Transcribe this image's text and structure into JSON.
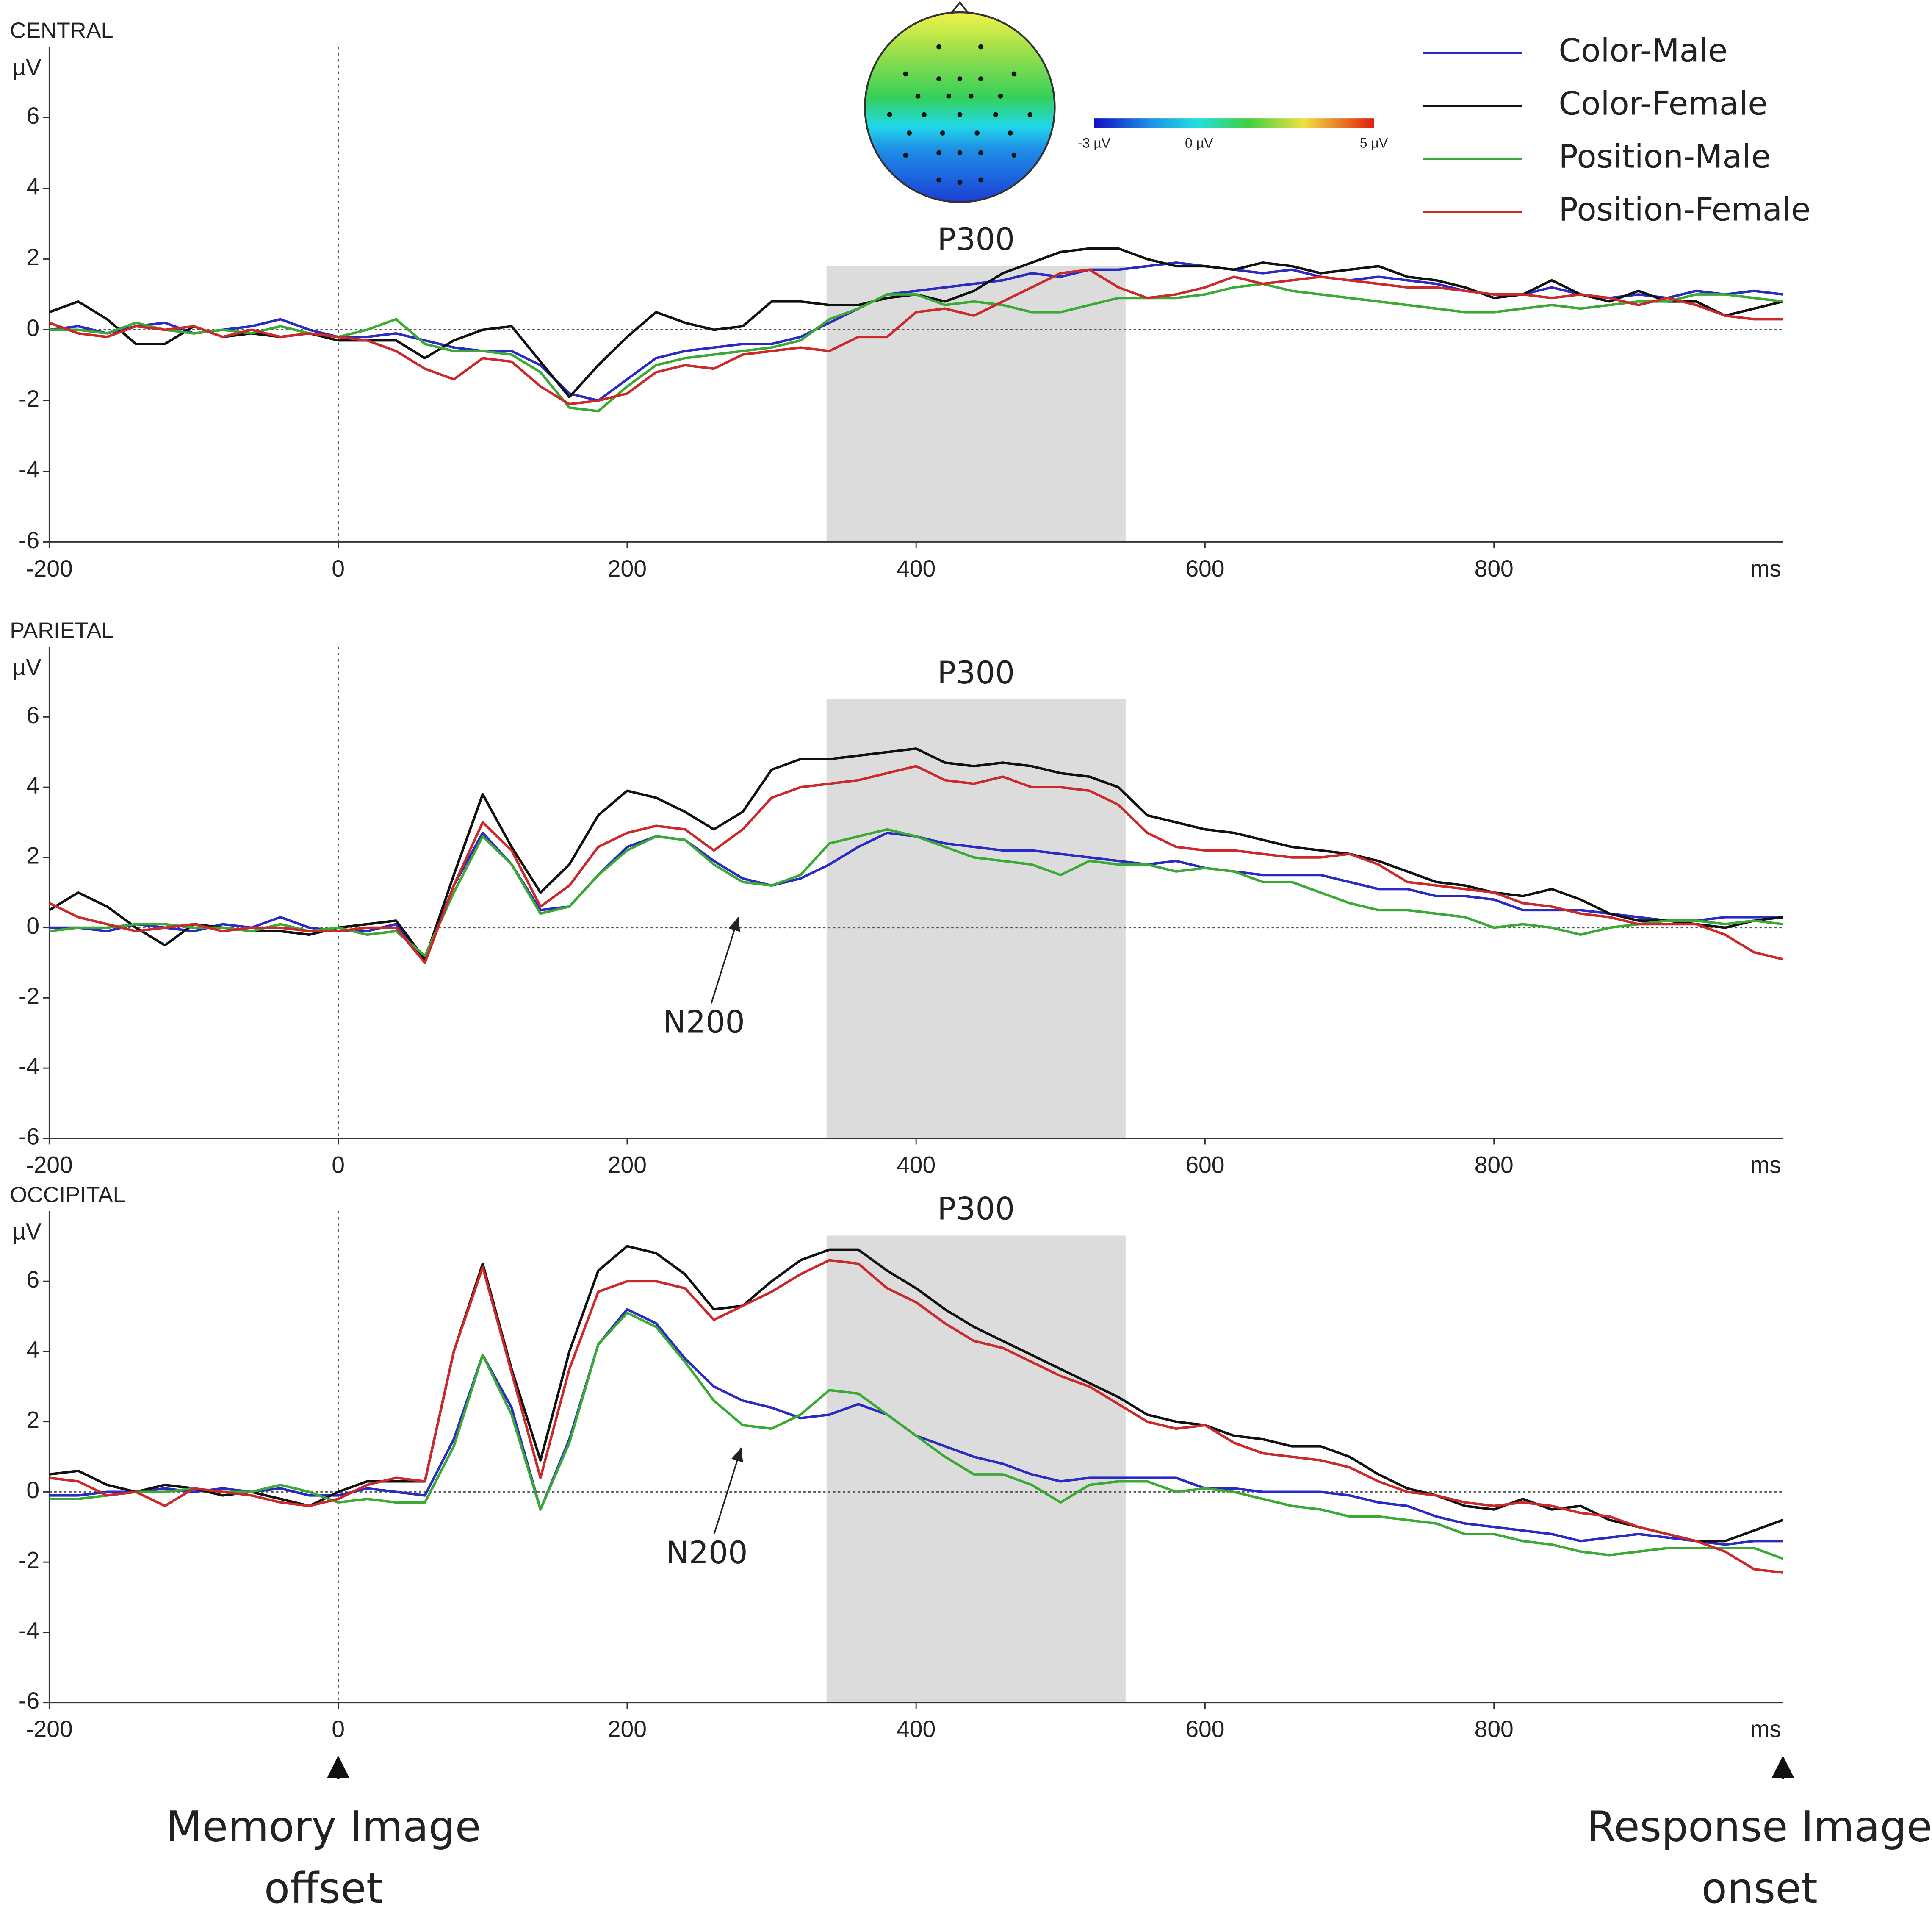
{
  "chart_data": [
    {
      "type": "line",
      "title": "CENTRAL",
      "ylabel": "µV",
      "x_unit": "ms",
      "xlim": [
        -200,
        1000
      ],
      "ylim": [
        -6,
        8
      ],
      "xticks": [
        -200,
        0,
        200,
        400,
        600,
        800
      ],
      "yticks": [
        -6,
        -4,
        -2,
        0,
        2,
        4,
        6
      ],
      "hline": 0,
      "vline": 0,
      "legend": true,
      "region": {
        "label": "P300",
        "x": [
          338,
          545
        ],
        "y": [
          -6,
          1.8
        ]
      },
      "colorbar": {
        "lim": [
          -3,
          5
        ],
        "ticks": [
          {
            "value": -3,
            "label": "-3 µV"
          },
          {
            "value": 0,
            "label": "0 µV"
          },
          {
            "value": 5,
            "label": "5 µV"
          }
        ]
      },
      "x": [
        -200,
        -180,
        -160,
        -140,
        -120,
        -100,
        -80,
        -60,
        -40,
        -20,
        0,
        20,
        40,
        60,
        80,
        100,
        120,
        140,
        160,
        180,
        200,
        220,
        240,
        260,
        280,
        300,
        320,
        340,
        360,
        380,
        400,
        420,
        440,
        460,
        480,
        500,
        520,
        540,
        560,
        580,
        600,
        620,
        640,
        660,
        680,
        700,
        720,
        740,
        760,
        780,
        800,
        820,
        840,
        860,
        880,
        900,
        920,
        940,
        960,
        980,
        1000
      ],
      "series": [
        {
          "name": "Color-Male",
          "color": "#2b2bc4",
          "label_color": "#3b6ea8",
          "values": [
            0,
            0.1,
            -0.1,
            0.1,
            0.2,
            -0.1,
            0,
            0.1,
            0.3,
            0,
            -0.2,
            -0.2,
            -0.1,
            -0.3,
            -0.5,
            -0.6,
            -0.6,
            -1.0,
            -1.8,
            -2.0,
            -1.4,
            -0.8,
            -0.6,
            -0.5,
            -0.4,
            -0.4,
            -0.2,
            0.2,
            0.6,
            1.0,
            1.1,
            1.2,
            1.3,
            1.4,
            1.6,
            1.5,
            1.7,
            1.7,
            1.8,
            1.9,
            1.8,
            1.7,
            1.6,
            1.7,
            1.5,
            1.4,
            1.5,
            1.4,
            1.3,
            1.1,
            1.0,
            1.0,
            1.2,
            1.0,
            0.9,
            1.0,
            0.9,
            1.1,
            1.0,
            1.1,
            1.0
          ]
        },
        {
          "name": "Color-Female",
          "color": "#111111",
          "label_color": "#111111",
          "values": [
            0.5,
            0.8,
            0.3,
            -0.4,
            -0.4,
            0.1,
            -0.2,
            -0.1,
            -0.2,
            -0.1,
            -0.3,
            -0.3,
            -0.3,
            -0.8,
            -0.3,
            0,
            0.1,
            -0.9,
            -1.9,
            -1.0,
            -0.2,
            0.5,
            0.2,
            0,
            0.1,
            0.8,
            0.8,
            0.7,
            0.7,
            0.9,
            1.0,
            0.8,
            1.1,
            1.6,
            1.9,
            2.2,
            2.3,
            2.3,
            2.0,
            1.8,
            1.8,
            1.7,
            1.9,
            1.8,
            1.6,
            1.7,
            1.8,
            1.5,
            1.4,
            1.2,
            0.9,
            1.0,
            1.4,
            1.0,
            0.8,
            1.1,
            0.8,
            0.8,
            0.4,
            0.6,
            0.8
          ]
        },
        {
          "name": "Position-Male",
          "color": "#3aaa35",
          "label_color": "#4c8a2e",
          "values": [
            0,
            0,
            -0.1,
            0.2,
            0,
            -0.1,
            0,
            -0.1,
            0.1,
            -0.1,
            -0.2,
            0,
            0.3,
            -0.4,
            -0.6,
            -0.6,
            -0.7,
            -1.2,
            -2.2,
            -2.3,
            -1.6,
            -1.0,
            -0.8,
            -0.7,
            -0.6,
            -0.5,
            -0.3,
            0.3,
            0.6,
            1.0,
            1.0,
            0.7,
            0.8,
            0.7,
            0.5,
            0.5,
            0.7,
            0.9,
            0.9,
            0.9,
            1.0,
            1.2,
            1.3,
            1.1,
            1.0,
            0.9,
            0.8,
            0.7,
            0.6,
            0.5,
            0.5,
            0.6,
            0.7,
            0.6,
            0.7,
            0.8,
            0.8,
            1.0,
            1.0,
            0.9,
            0.8
          ]
        },
        {
          "name": "Position-Female",
          "color": "#cc2a2a",
          "label_color": "#c0282e",
          "values": [
            0.2,
            -0.1,
            -0.2,
            0.1,
            0,
            0.1,
            -0.2,
            0,
            -0.2,
            -0.1,
            -0.2,
            -0.3,
            -0.6,
            -1.1,
            -1.4,
            -0.8,
            -0.9,
            -1.6,
            -2.1,
            -2.0,
            -1.8,
            -1.2,
            -1.0,
            -1.1,
            -0.7,
            -0.6,
            -0.5,
            -0.6,
            -0.2,
            -0.2,
            0.5,
            0.6,
            0.4,
            0.8,
            1.2,
            1.6,
            1.7,
            1.2,
            0.9,
            1.0,
            1.2,
            1.5,
            1.3,
            1.4,
            1.5,
            1.4,
            1.3,
            1.2,
            1.2,
            1.1,
            1.0,
            1.0,
            0.9,
            1.0,
            0.9,
            0.7,
            0.9,
            0.7,
            0.4,
            0.3,
            0.3
          ]
        }
      ]
    },
    {
      "type": "line",
      "title": "PARIETAL",
      "ylabel": "µV",
      "x_unit": "ms",
      "xlim": [
        -200,
        1000
      ],
      "ylim": [
        -6,
        8
      ],
      "xticks": [
        -200,
        0,
        200,
        400,
        600,
        800
      ],
      "yticks": [
        -6,
        -4,
        -2,
        0,
        2,
        4,
        6
      ],
      "hline": 0,
      "vline": 0,
      "legend": false,
      "region": {
        "label": "P300",
        "x": [
          338,
          545
        ],
        "y": [
          -6,
          6.5
        ]
      },
      "annotations": [
        {
          "text": "N200",
          "x": 277,
          "y": 0.3
        }
      ],
      "x": [
        -200,
        -180,
        -160,
        -140,
        -120,
        -100,
        -80,
        -60,
        -40,
        -20,
        0,
        20,
        40,
        60,
        80,
        100,
        120,
        140,
        160,
        180,
        200,
        220,
        240,
        260,
        280,
        300,
        320,
        340,
        360,
        380,
        400,
        420,
        440,
        460,
        480,
        500,
        520,
        540,
        560,
        580,
        600,
        620,
        640,
        660,
        680,
        700,
        720,
        740,
        760,
        780,
        800,
        820,
        840,
        860,
        880,
        900,
        920,
        940,
        960,
        980,
        1000
      ],
      "series": [
        {
          "name": "Color-Male",
          "color": "#2b2bc4",
          "values": [
            0,
            0,
            -0.1,
            0.1,
            0,
            -0.1,
            0.1,
            0,
            0.3,
            0,
            -0.1,
            -0.1,
            0.1,
            -0.9,
            1.2,
            2.7,
            1.8,
            0.5,
            0.6,
            1.5,
            2.3,
            2.6,
            2.5,
            1.9,
            1.4,
            1.2,
            1.4,
            1.8,
            2.3,
            2.7,
            2.6,
            2.4,
            2.3,
            2.2,
            2.2,
            2.1,
            2.0,
            1.9,
            1.8,
            1.9,
            1.7,
            1.6,
            1.5,
            1.5,
            1.5,
            1.3,
            1.1,
            1.1,
            0.9,
            0.9,
            0.8,
            0.5,
            0.5,
            0.5,
            0.4,
            0.3,
            0.2,
            0.2,
            0.3,
            0.3,
            0.3
          ]
        },
        {
          "name": "Color-Female",
          "color": "#111111",
          "values": [
            0.5,
            1.0,
            0.6,
            0,
            -0.5,
            0.1,
            0,
            -0.1,
            -0.1,
            -0.2,
            0,
            0.1,
            0.2,
            -0.9,
            1.5,
            3.8,
            2.3,
            1.0,
            1.8,
            3.2,
            3.9,
            3.7,
            3.3,
            2.8,
            3.3,
            4.5,
            4.8,
            4.8,
            4.9,
            5.0,
            5.1,
            4.7,
            4.6,
            4.7,
            4.6,
            4.4,
            4.3,
            4.0,
            3.2,
            3.0,
            2.8,
            2.7,
            2.5,
            2.3,
            2.2,
            2.1,
            1.9,
            1.6,
            1.3,
            1.2,
            1.0,
            0.9,
            1.1,
            0.8,
            0.4,
            0.2,
            0.2,
            0.1,
            0,
            0.2,
            0.3
          ]
        },
        {
          "name": "Position-Male",
          "color": "#3aaa35",
          "values": [
            -0.1,
            0,
            0,
            0.1,
            0.1,
            0,
            0,
            -0.1,
            0.1,
            -0.1,
            0,
            -0.2,
            -0.1,
            -0.8,
            1.0,
            2.6,
            1.8,
            0.4,
            0.6,
            1.5,
            2.2,
            2.6,
            2.5,
            1.8,
            1.3,
            1.2,
            1.5,
            2.4,
            2.6,
            2.8,
            2.6,
            2.3,
            2.0,
            1.9,
            1.8,
            1.5,
            1.9,
            1.8,
            1.8,
            1.6,
            1.7,
            1.6,
            1.3,
            1.3,
            1.0,
            0.7,
            0.5,
            0.5,
            0.4,
            0.3,
            0,
            0.1,
            0,
            -0.2,
            0,
            0.1,
            0.2,
            0.2,
            0.1,
            0.2,
            0.1
          ]
        },
        {
          "name": "Position-Female",
          "color": "#cc2a2a",
          "values": [
            0.7,
            0.3,
            0.1,
            -0.1,
            0,
            0.1,
            -0.1,
            0,
            0,
            -0.1,
            -0.1,
            0,
            0,
            -1.0,
            1.2,
            3.0,
            2.2,
            0.6,
            1.2,
            2.3,
            2.7,
            2.9,
            2.8,
            2.2,
            2.8,
            3.7,
            4.0,
            4.1,
            4.2,
            4.4,
            4.6,
            4.2,
            4.1,
            4.3,
            4.0,
            4.0,
            3.9,
            3.5,
            2.7,
            2.3,
            2.2,
            2.2,
            2.1,
            2.0,
            2.0,
            2.1,
            1.8,
            1.3,
            1.2,
            1.1,
            1.0,
            0.7,
            0.6,
            0.4,
            0.3,
            0.1,
            0.1,
            0.1,
            -0.2,
            -0.7,
            -0.9
          ]
        }
      ]
    },
    {
      "type": "line",
      "title": "OCCIPITAL",
      "ylabel": "µV",
      "x_unit": "ms",
      "xlim": [
        -200,
        1000
      ],
      "ylim": [
        -6,
        8
      ],
      "xticks": [
        -200,
        0,
        200,
        400,
        600,
        800
      ],
      "yticks": [
        -6,
        -4,
        -2,
        0,
        2,
        4,
        6
      ],
      "hline": 0,
      "vline": 0,
      "legend": false,
      "region": {
        "label": "P300",
        "x": [
          338,
          545
        ],
        "y": [
          -6,
          7.3
        ]
      },
      "annotations": [
        {
          "text": "N200",
          "x": 279,
          "y": 1.26
        }
      ],
      "events": [
        {
          "x": 0,
          "lines": [
            "Memory Image",
            "offset"
          ]
        },
        {
          "x": 1000,
          "lines": [
            "Response Image",
            "onset"
          ]
        }
      ],
      "x": [
        -200,
        -180,
        -160,
        -140,
        -120,
        -100,
        -80,
        -60,
        -40,
        -20,
        0,
        20,
        40,
        60,
        80,
        100,
        120,
        140,
        160,
        180,
        200,
        220,
        240,
        260,
        280,
        300,
        320,
        340,
        360,
        380,
        400,
        420,
        440,
        460,
        480,
        500,
        520,
        540,
        560,
        580,
        600,
        620,
        640,
        660,
        680,
        700,
        720,
        740,
        760,
        780,
        800,
        820,
        840,
        860,
        880,
        900,
        920,
        940,
        960,
        980,
        1000
      ],
      "series": [
        {
          "name": "Color-Male",
          "color": "#2b2bc4",
          "values": [
            -0.1,
            -0.1,
            0,
            0,
            0.1,
            0,
            0.1,
            0,
            0.1,
            -0.1,
            -0.1,
            0.1,
            0,
            -0.1,
            1.5,
            3.9,
            2.4,
            -0.5,
            1.5,
            4.2,
            5.2,
            4.8,
            3.8,
            3.0,
            2.6,
            2.4,
            2.1,
            2.2,
            2.5,
            2.2,
            1.6,
            1.3,
            1.0,
            0.8,
            0.5,
            0.3,
            0.4,
            0.4,
            0.4,
            0.4,
            0.1,
            0.1,
            0,
            0,
            0,
            -0.1,
            -0.3,
            -0.4,
            -0.7,
            -0.9,
            -1.0,
            -1.1,
            -1.2,
            -1.4,
            -1.3,
            -1.2,
            -1.3,
            -1.4,
            -1.5,
            -1.4,
            -1.4
          ]
        },
        {
          "name": "Color-Female",
          "color": "#111111",
          "values": [
            0.5,
            0.6,
            0.2,
            0,
            0.2,
            0.1,
            -0.1,
            0,
            -0.2,
            -0.4,
            0,
            0.3,
            0.3,
            0.3,
            4.0,
            6.5,
            3.5,
            0.9,
            4.0,
            6.3,
            7.0,
            6.8,
            6.2,
            5.2,
            5.3,
            6.0,
            6.6,
            6.9,
            6.9,
            6.3,
            5.8,
            5.2,
            4.7,
            4.3,
            3.9,
            3.5,
            3.1,
            2.7,
            2.2,
            2.0,
            1.9,
            1.6,
            1.5,
            1.3,
            1.3,
            1.0,
            0.5,
            0.1,
            -0.1,
            -0.4,
            -0.5,
            -0.2,
            -0.5,
            -0.4,
            -0.8,
            -1.0,
            -1.2,
            -1.4,
            -1.4,
            -1.1,
            -0.8
          ]
        },
        {
          "name": "Position-Male",
          "color": "#3aaa35",
          "values": [
            -0.2,
            -0.2,
            -0.1,
            0,
            0,
            0.1,
            0,
            0,
            0.2,
            0,
            -0.3,
            -0.2,
            -0.3,
            -0.3,
            1.3,
            3.9,
            2.2,
            -0.5,
            1.4,
            4.2,
            5.1,
            4.7,
            3.7,
            2.6,
            1.9,
            1.8,
            2.2,
            2.9,
            2.8,
            2.2,
            1.6,
            1.0,
            0.5,
            0.5,
            0.2,
            -0.3,
            0.2,
            0.3,
            0.3,
            0,
            0.1,
            0,
            -0.2,
            -0.4,
            -0.5,
            -0.7,
            -0.7,
            -0.8,
            -0.9,
            -1.2,
            -1.2,
            -1.4,
            -1.5,
            -1.7,
            -1.8,
            -1.7,
            -1.6,
            -1.6,
            -1.6,
            -1.6,
            -1.9
          ]
        },
        {
          "name": "Position-Female",
          "color": "#cc2a2a",
          "values": [
            0.4,
            0.3,
            -0.1,
            0,
            -0.4,
            0.1,
            0,
            -0.1,
            -0.3,
            -0.4,
            -0.2,
            0.2,
            0.4,
            0.3,
            4.0,
            6.4,
            3.4,
            0.4,
            3.5,
            5.7,
            6.0,
            6.0,
            5.8,
            4.9,
            5.3,
            5.7,
            6.2,
            6.6,
            6.5,
            5.8,
            5.4,
            4.8,
            4.3,
            4.1,
            3.7,
            3.3,
            3.0,
            2.5,
            2.0,
            1.8,
            1.9,
            1.4,
            1.1,
            1.0,
            0.9,
            0.7,
            0.3,
            0,
            -0.1,
            -0.3,
            -0.4,
            -0.3,
            -0.4,
            -0.6,
            -0.7,
            -1.0,
            -1.2,
            -1.4,
            -1.7,
            -2.2,
            -2.3
          ]
        }
      ]
    }
  ]
}
